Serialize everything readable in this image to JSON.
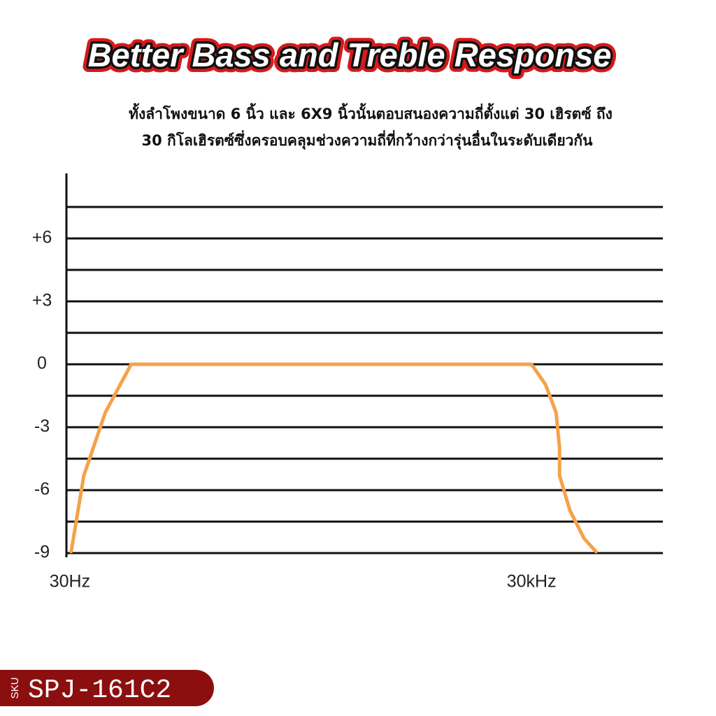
{
  "chart_data": {
    "type": "line",
    "title": "Better Bass and Treble Response",
    "subtitle": [
      "ทั้งลำโพงขนาด 6 นิ้ว และ 6X9 นิ้วนั้นตอบสนองความถี่ตั้งแต่ 30 เฮิรตซ์ ถึง",
      "30 กิโลเฮิรตซ์ซึ่งครอบคลุมช่วงความถี่ที่กว้างกว่ารุ่นอื่นในระดับเดียวกัน"
    ],
    "x": [
      30.6,
      37,
      51,
      75,
      30000,
      37000,
      43300,
      45600,
      45600,
      53300,
      65800,
      78600
    ],
    "values": [
      -8.93,
      -5.3,
      -2.3,
      0,
      0,
      -0.97,
      -2.3,
      -3.97,
      -5.3,
      -6.97,
      -8.3,
      -8.93
    ],
    "color": "#f5a24a",
    "xlog": true,
    "xlim": [
      28.5,
      214000
    ],
    "xticks": [
      {
        "value": 30,
        "label": "30Hz"
      },
      {
        "value": 30000,
        "label": "30kHz"
      }
    ],
    "ylim": [
      -9.2,
      9.1
    ],
    "yticks": [
      {
        "value": 6,
        "label": "+6"
      },
      {
        "value": 3,
        "label": "+3"
      },
      0,
      -3,
      -6,
      -9
    ],
    "minor_yticks": [
      7.5,
      4.5,
      1.5,
      -1.5,
      -4.5,
      -7.5
    ],
    "grid": true
  },
  "badge": {
    "label": "SKU",
    "code": "SPJ-161C2"
  }
}
